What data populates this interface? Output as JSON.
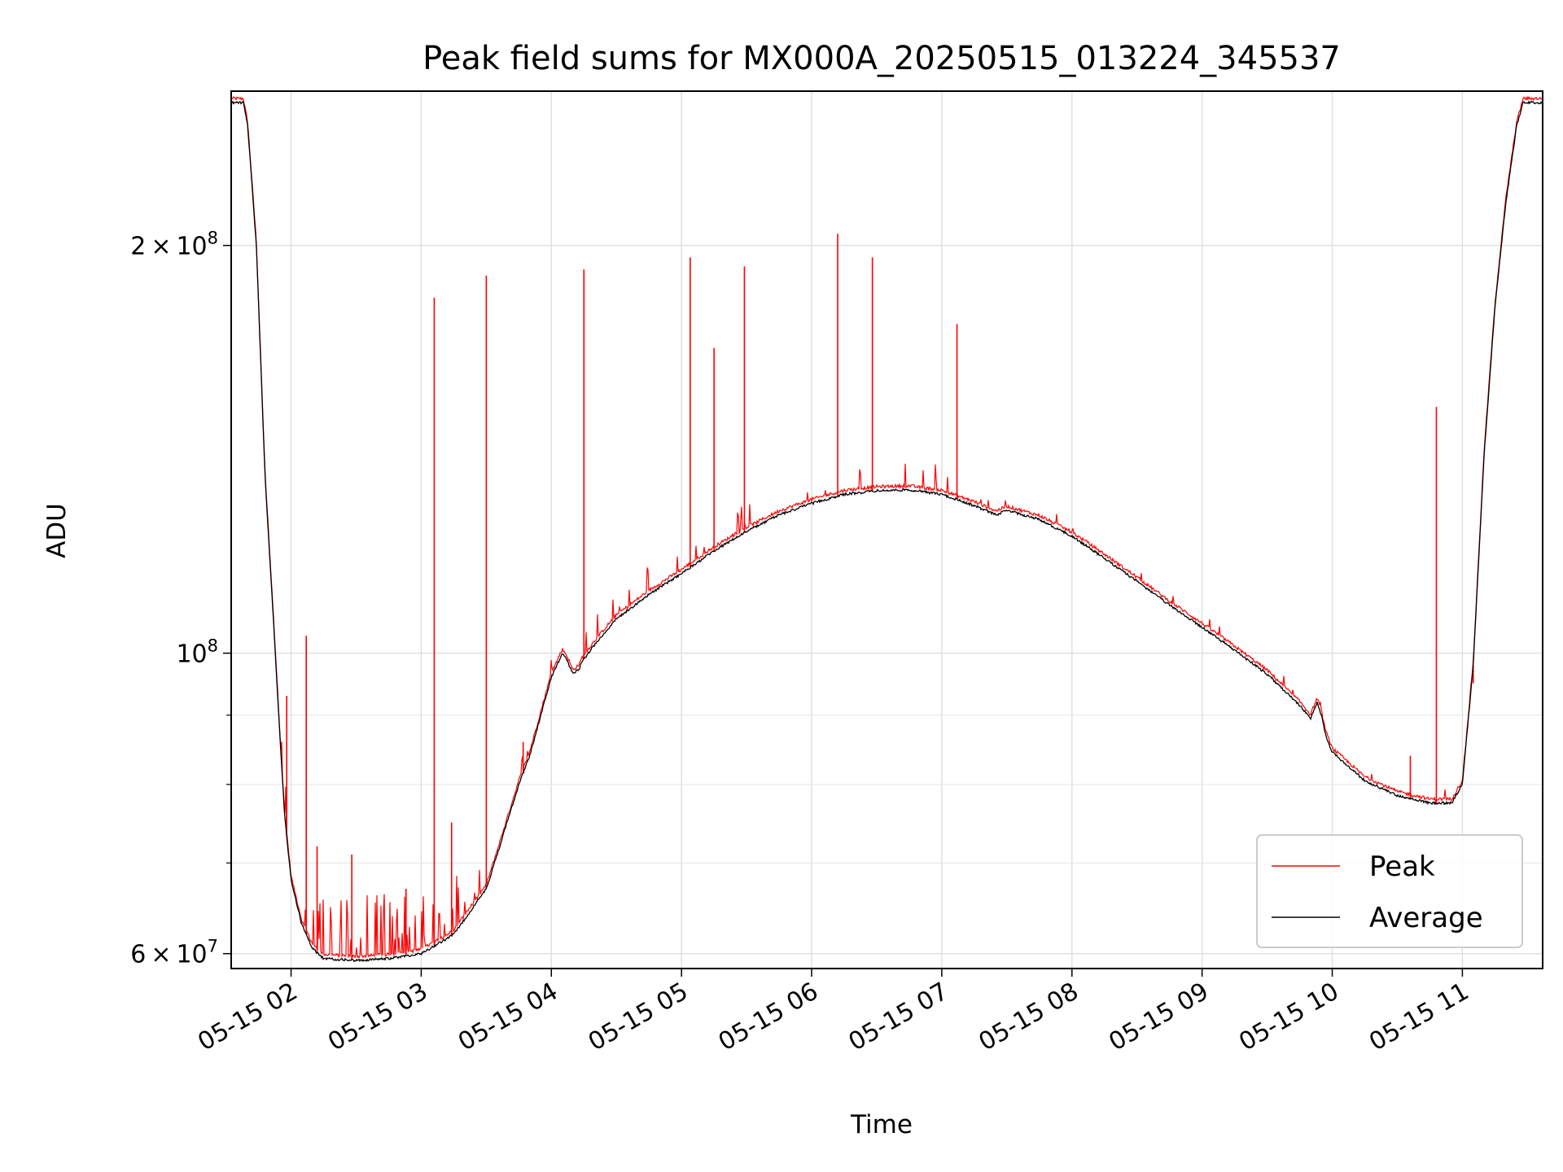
{
  "chart_data": {
    "type": "line",
    "title": "Peak field sums for MX000A_20250515_013224_345537",
    "xlabel": "Time",
    "ylabel": "ADU",
    "yscale": "log",
    "ylim": [
      58500000,
      260000000
    ],
    "xlim": [
      "2025-05-15 01:32:24",
      "2025-05-15 11:37:00"
    ],
    "grid": true,
    "legend": {
      "position": "lower-right"
    },
    "x_ticks": [
      "05-15 02",
      "05-15 03",
      "05-15 04",
      "05-15 05",
      "05-15 06",
      "05-15 07",
      "05-15 08",
      "05-15 09",
      "05-15 10",
      "05-15 11"
    ],
    "y_ticks_major": [
      {
        "value": 60000000,
        "mantissa": "6",
        "exponent": "7"
      },
      {
        "value": 100000000,
        "mantissa": "",
        "exponent": "8"
      },
      {
        "value": 200000000,
        "mantissa": "2",
        "exponent": "8"
      }
    ],
    "y_ticks_minor": [
      70000000,
      80000000,
      90000000
    ],
    "series": [
      {
        "name": "Average",
        "color": "#000000",
        "x": [
          "2025-05-15 01:32:24",
          "2025-05-15 01:38:00",
          "2025-05-15 01:40:00",
          "2025-05-15 01:44:00",
          "2025-05-15 01:48:00",
          "2025-05-15 01:52:00",
          "2025-05-15 01:55:00",
          "2025-05-15 01:57:00",
          "2025-05-15 02:00:00",
          "2025-05-15 02:05:00",
          "2025-05-15 02:10:00",
          "2025-05-15 02:15:00",
          "2025-05-15 02:30:00",
          "2025-05-15 02:45:00",
          "2025-05-15 03:00:00",
          "2025-05-15 03:15:00",
          "2025-05-15 03:30:00",
          "2025-05-15 03:35:00",
          "2025-05-15 03:45:00",
          "2025-05-15 03:50:00",
          "2025-05-15 04:00:00",
          "2025-05-15 04:05:00",
          "2025-05-15 04:07:00",
          "2025-05-15 04:10:00",
          "2025-05-15 04:13:00",
          "2025-05-15 04:14:00",
          "2025-05-15 04:20:00",
          "2025-05-15 04:30:00",
          "2025-05-15 04:45:00",
          "2025-05-15 05:00:00",
          "2025-05-15 05:15:00",
          "2025-05-15 05:30:00",
          "2025-05-15 05:45:00",
          "2025-05-15 06:00:00",
          "2025-05-15 06:15:00",
          "2025-05-15 06:30:00",
          "2025-05-15 06:45:00",
          "2025-05-15 07:00:00",
          "2025-05-15 07:15:00",
          "2025-05-15 07:25:00",
          "2025-05-15 07:30:00",
          "2025-05-15 07:45:00",
          "2025-05-15 08:00:00",
          "2025-05-15 08:15:00",
          "2025-05-15 08:30:00",
          "2025-05-15 08:45:00",
          "2025-05-15 09:00:00",
          "2025-05-15 09:15:00",
          "2025-05-15 09:30:00",
          "2025-05-15 09:45:00",
          "2025-05-15 09:50:00",
          "2025-05-15 09:53:00",
          "2025-05-15 09:55:00",
          "2025-05-15 09:57:00",
          "2025-05-15 10:00:00",
          "2025-05-15 10:15:00",
          "2025-05-15 10:30:00",
          "2025-05-15 10:45:00",
          "2025-05-15 10:55:00",
          "2025-05-15 11:00:00",
          "2025-05-15 11:05:00",
          "2025-05-15 11:10:00",
          "2025-05-15 11:15:00",
          "2025-05-15 11:20:00",
          "2025-05-15 11:25:00",
          "2025-05-15 11:28:00",
          "2025-05-15 11:37:00"
        ],
        "y": [
          255000000,
          255000000,
          245000000,
          200000000,
          135000000,
          105000000,
          86000000,
          76000000,
          68000000,
          63000000,
          60500000,
          59500000,
          59300000,
          59500000,
          60000000,
          62000000,
          67000000,
          71000000,
          80000000,
          84000000,
          96000000,
          100000000,
          99000000,
          96500000,
          97500000,
          98500000,
          101500000,
          106000000,
          110500000,
          114500000,
          119000000,
          123000000,
          126500000,
          129000000,
          131000000,
          131800000,
          132000000,
          131000000,
          128500000,
          126500000,
          127500000,
          125500000,
          122000000,
          117500000,
          113000000,
          108500000,
          104500000,
          100500000,
          96500000,
          91500000,
          89500000,
          92000000,
          90000000,
          87000000,
          84500000,
          80500000,
          78500000,
          77500000,
          77500000,
          80000000,
          98000000,
          140000000,
          180000000,
          215000000,
          245000000,
          255000000,
          255000000
        ]
      },
      {
        "name": "Peak",
        "color": "#ff0000",
        "spikes": [
          {
            "x": "2025-05-15 01:58:00",
            "y": 93000000
          },
          {
            "x": "2025-05-15 02:07:00",
            "y": 103000000
          },
          {
            "x": "2025-05-15 02:12:00",
            "y": 72000000
          },
          {
            "x": "2025-05-15 02:28:00",
            "y": 71000000
          },
          {
            "x": "2025-05-15 02:53:00",
            "y": 67000000
          },
          {
            "x": "2025-05-15 03:06:00",
            "y": 183000000
          },
          {
            "x": "2025-05-15 03:14:00",
            "y": 75000000
          },
          {
            "x": "2025-05-15 03:30:00",
            "y": 190000000
          },
          {
            "x": "2025-05-15 03:47:00",
            "y": 86000000
          },
          {
            "x": "2025-05-15 04:15:00",
            "y": 192000000
          },
          {
            "x": "2025-05-15 04:35:00",
            "y": 108000000
          },
          {
            "x": "2025-05-15 05:04:00",
            "y": 196000000
          },
          {
            "x": "2025-05-15 05:15:00",
            "y": 168000000
          },
          {
            "x": "2025-05-15 05:29:00",
            "y": 193000000
          },
          {
            "x": "2025-05-15 06:12:00",
            "y": 204000000
          },
          {
            "x": "2025-05-15 06:28:00",
            "y": 196000000
          },
          {
            "x": "2025-05-15 07:07:00",
            "y": 175000000
          },
          {
            "x": "2025-05-15 10:36:00",
            "y": 84000000
          },
          {
            "x": "2025-05-15 10:48:00",
            "y": 152000000
          },
          {
            "x": "2025-05-15 11:05:00",
            "y": 95000000
          }
        ]
      }
    ]
  }
}
